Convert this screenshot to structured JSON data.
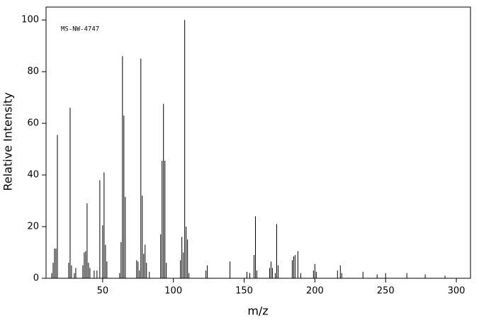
{
  "chart_data": {
    "type": "spectrum",
    "annotation": "MS-NW-4747",
    "x_label": "m/z",
    "y_label": "Relative Intensity",
    "x": [
      14,
      15,
      16,
      17,
      18,
      26,
      27,
      28,
      30,
      31,
      36,
      37,
      38,
      39,
      40,
      41,
      44,
      46,
      48,
      50,
      51,
      52,
      53,
      62,
      63,
      64,
      65,
      66,
      74,
      75,
      76,
      77,
      78,
      79,
      80,
      81,
      83,
      91,
      92,
      93,
      94,
      95,
      105,
      106,
      107,
      108,
      109,
      110,
      111,
      123,
      124,
      140,
      152,
      154,
      157,
      158,
      159,
      168,
      169,
      170,
      172,
      173,
      174,
      184,
      185,
      186,
      188,
      190,
      199,
      200,
      201,
      216,
      218,
      219,
      234,
      244,
      250,
      265,
      278,
      292
    ],
    "values": [
      2,
      6,
      11.5,
      11.5,
      55.5,
      6,
      66,
      5,
      2,
      4,
      5,
      10,
      10.5,
      29,
      6,
      4,
      3,
      3,
      38,
      20.5,
      41,
      13,
      6.5,
      2,
      14,
      86,
      63,
      31.5,
      7,
      6.5,
      3,
      85,
      32,
      9.5,
      13,
      6,
      2.5,
      17,
      45.5,
      67.5,
      45.5,
      6,
      7,
      16,
      10,
      100,
      20,
      15,
      2,
      3,
      5,
      6.5,
      2.5,
      2,
      9,
      24,
      3,
      4,
      6.5,
      4,
      2,
      21,
      5,
      7,
      8.5,
      9,
      10.5,
      2,
      3,
      5.5,
      2.5,
      3,
      5,
      2,
      2.5,
      1.5,
      2,
      2,
      1.5,
      1
    ],
    "color": "#000000",
    "xlim": [
      10,
      310
    ],
    "ylim": [
      0,
      105
    ],
    "xticks": [
      50,
      100,
      150,
      200,
      250,
      300
    ],
    "yticks": [
      0,
      20,
      40,
      60,
      80,
      100
    ]
  }
}
